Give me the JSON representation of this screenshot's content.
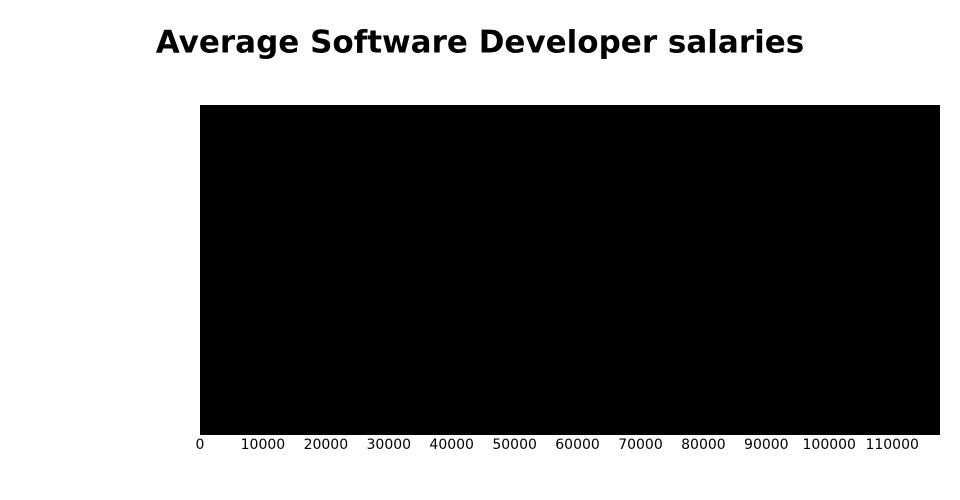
{
  "chart_data": {
    "type": "bar",
    "orientation": "horizontal",
    "title": "Average Software Developer salaries",
    "categories": [
      null
    ],
    "values": [
      117600
    ],
    "color": "#000000",
    "xlim": [
      0,
      117600
    ],
    "xticks": [
      0,
      10000,
      20000,
      30000,
      40000,
      50000,
      60000,
      70000,
      80000,
      90000,
      100000,
      110000
    ],
    "grid": false
  }
}
